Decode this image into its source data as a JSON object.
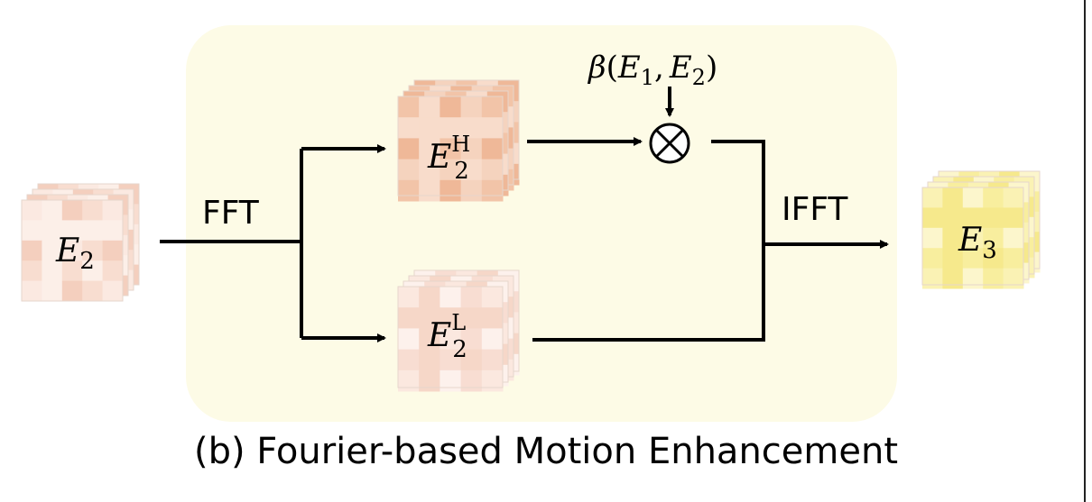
{
  "diagram": {
    "caption": "(b) Fourier-based Motion Enhancement",
    "edges": {
      "fft_label": "FFT",
      "ifft_label": "IFFT"
    },
    "weight": {
      "beta": "β",
      "open": "(",
      "e1_base": "E",
      "e1_sub": "1",
      "comma": ",",
      "e2_base": "E",
      "e2_sub": "2",
      "close": ")"
    },
    "nodes": {
      "input": {
        "base": "E",
        "sub": "2",
        "sup": ""
      },
      "high": {
        "base": "E",
        "sub": "2",
        "sup": "H"
      },
      "low": {
        "base": "E",
        "sub": "2",
        "sup": "L"
      },
      "output": {
        "base": "E",
        "sub": "3",
        "sup": ""
      }
    },
    "colors": {
      "panel_bg": "#fdfbe6",
      "input_tiles": [
        "#fbe9e1",
        "#f8ddd0",
        "#f4cfbe",
        "#fcefe8"
      ],
      "high_tiles": [
        "#f2c4a8",
        "#f5d3be",
        "#efb898",
        "#f8dccb"
      ],
      "low_tiles": [
        "#fbe8df",
        "#f8ddd2",
        "#fdf1ec",
        "#f6d7c8"
      ],
      "output_tiles": [
        "#faf2b4",
        "#f8ee9e",
        "#fcf6cc",
        "#f6e98c"
      ]
    }
  }
}
